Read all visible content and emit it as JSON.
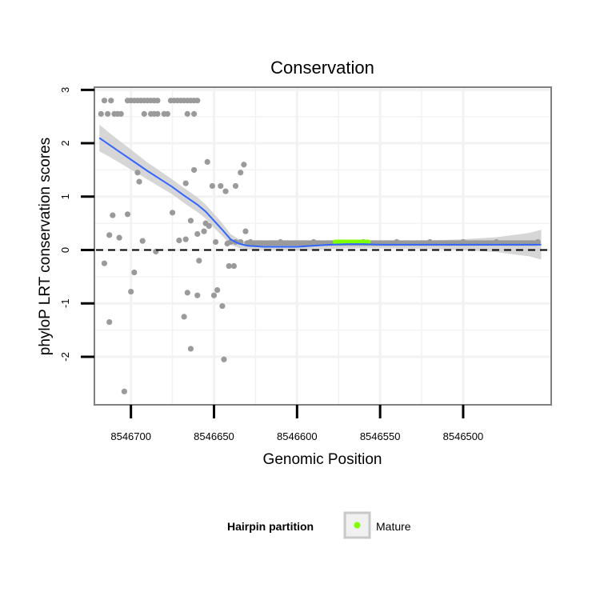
{
  "chart_data": {
    "type": "scatter",
    "title": "Conservation",
    "xlabel": "Genomic Position",
    "ylabel": "phyloP LRT conservation scores",
    "x_reversed": true,
    "xlim": [
      8546722,
      8546447
    ],
    "ylim": [
      -2.9,
      3.05
    ],
    "x_ticks": [
      8546700,
      8546650,
      8546600,
      8546550,
      8546500
    ],
    "x_tick_labels": [
      "8546700",
      "8546650",
      "8546600",
      "8546550",
      "8546500"
    ],
    "y_ticks": [
      -2,
      -1,
      0,
      1,
      2,
      3
    ],
    "y_tick_labels": [
      "-2",
      "-1",
      "0",
      "1",
      "2",
      "3"
    ],
    "reference_line_y": 0,
    "points": [
      [
        8546718,
        2.55
      ],
      [
        8546716,
        2.8
      ],
      [
        8546714,
        2.55
      ],
      [
        8546712,
        2.8
      ],
      [
        8546710,
        2.55
      ],
      [
        8546708,
        2.55
      ],
      [
        8546706,
        2.55
      ],
      [
        8546716,
        -0.25
      ],
      [
        8546713,
        0.28
      ],
      [
        8546711,
        0.65
      ],
      [
        8546713,
        -1.35
      ],
      [
        8546707,
        0.23
      ],
      [
        8546704,
        -2.65
      ],
      [
        8546702,
        2.8
      ],
      [
        8546700,
        2.8
      ],
      [
        8546698,
        2.8
      ],
      [
        8546696,
        2.8
      ],
      [
        8546694,
        2.8
      ],
      [
        8546692,
        2.8
      ],
      [
        8546690,
        2.8
      ],
      [
        8546688,
        2.8
      ],
      [
        8546686,
        2.8
      ],
      [
        8546684,
        2.8
      ],
      [
        8546692,
        2.55
      ],
      [
        8546688,
        2.55
      ],
      [
        8546686,
        2.55
      ],
      [
        8546684,
        2.55
      ],
      [
        8546680,
        2.55
      ],
      [
        8546678,
        2.55
      ],
      [
        8546676,
        2.8
      ],
      [
        8546674,
        2.8
      ],
      [
        8546672,
        2.8
      ],
      [
        8546670,
        2.8
      ],
      [
        8546668,
        2.8
      ],
      [
        8546666,
        2.8
      ],
      [
        8546664,
        2.8
      ],
      [
        8546662,
        2.8
      ],
      [
        8546660,
        2.8
      ],
      [
        8546666,
        2.55
      ],
      [
        8546662,
        2.55
      ],
      [
        8546702,
        0.67
      ],
      [
        8546700,
        -0.78
      ],
      [
        8546698,
        -0.42
      ],
      [
        8546696,
        1.45
      ],
      [
        8546695,
        1.28
      ],
      [
        8546693,
        0.17
      ],
      [
        8546685,
        -0.03
      ],
      [
        8546675,
        0.7
      ],
      [
        8546671,
        0.18
      ],
      [
        8546667,
        1.25
      ],
      [
        8546667,
        0.2
      ],
      [
        8546664,
        0.55
      ],
      [
        8546662,
        1.5
      ],
      [
        8546660,
        0.3
      ],
      [
        8546659,
        -0.2
      ],
      [
        8546656,
        0.35
      ],
      [
        8546655,
        0.5
      ],
      [
        8546653,
        0.45
      ],
      [
        8546654,
        1.65
      ],
      [
        8546651,
        1.2
      ],
      [
        8546649,
        0.15
      ],
      [
        8546646,
        1.2
      ],
      [
        8546643,
        1.1
      ],
      [
        8546642,
        0.12
      ],
      [
        8546640,
        0.15
      ],
      [
        8546637,
        0.15
      ],
      [
        8546637,
        1.2
      ],
      [
        8546634,
        1.45
      ],
      [
        8546632,
        1.6
      ],
      [
        8546631,
        0.35
      ],
      [
        8546641,
        -0.3
      ],
      [
        8546638,
        -0.3
      ],
      [
        8546634,
        0.15
      ],
      [
        8546668,
        -1.25
      ],
      [
        8546666,
        -0.8
      ],
      [
        8546664,
        -1.85
      ],
      [
        8546660,
        -0.85
      ],
      [
        8546650,
        -0.85
      ],
      [
        8546648,
        -0.75
      ],
      [
        8546645,
        -1.05
      ],
      [
        8546644,
        -2.05
      ],
      [
        8546628,
        0.15
      ],
      [
        8546610,
        0.15
      ],
      [
        8546590,
        0.15
      ],
      [
        8546560,
        0.15
      ],
      [
        8546540,
        0.15
      ],
      [
        8546520,
        0.15
      ],
      [
        8546500,
        0.15
      ],
      [
        8546480,
        0.15
      ],
      [
        8546455,
        0.15
      ]
    ],
    "dense_band": {
      "x_from": 8546630,
      "x_to": 8546456,
      "y": 0.13
    },
    "mature_segment": {
      "x_from": 8546577,
      "x_to": 8546557,
      "y": 0.15
    },
    "smooth_line": [
      [
        8546719,
        2.1
      ],
      [
        8546712,
        1.95
      ],
      [
        8546705,
        1.8
      ],
      [
        8546697,
        1.63
      ],
      [
        8546690,
        1.48
      ],
      [
        8546682,
        1.32
      ],
      [
        8546675,
        1.18
      ],
      [
        8546668,
        1.02
      ],
      [
        8546660,
        0.85
      ],
      [
        8546655,
        0.72
      ],
      [
        8546650,
        0.55
      ],
      [
        8546645,
        0.38
      ],
      [
        8546640,
        0.2
      ],
      [
        8546635,
        0.12
      ],
      [
        8546630,
        0.08
      ],
      [
        8546620,
        0.06
      ],
      [
        8546610,
        0.06
      ],
      [
        8546600,
        0.06
      ],
      [
        8546590,
        0.08
      ],
      [
        8546580,
        0.1
      ],
      [
        8546570,
        0.11
      ],
      [
        8546560,
        0.11
      ],
      [
        8546550,
        0.1
      ],
      [
        8546540,
        0.1
      ],
      [
        8546520,
        0.1
      ],
      [
        8546500,
        0.1
      ],
      [
        8546480,
        0.1
      ],
      [
        8546460,
        0.1
      ],
      [
        8546453,
        0.1
      ]
    ],
    "ribbon_halfwidth": [
      0.25,
      0.22,
      0.2,
      0.18,
      0.16,
      0.15,
      0.14,
      0.14,
      0.14,
      0.13,
      0.13,
      0.12,
      0.1,
      0.08,
      0.07,
      0.06,
      0.06,
      0.07,
      0.08,
      0.08,
      0.08,
      0.08,
      0.07,
      0.07,
      0.08,
      0.1,
      0.14,
      0.22,
      0.28
    ],
    "colors": {
      "point": "#9a9a9a",
      "smooth": "#3366ff",
      "ribbon": "#cfcfcf",
      "mature": "#7fff00",
      "panel_border": "#7f7f7f",
      "grid": "#f2f2f2"
    },
    "legend": {
      "title": "Hairpin partition",
      "items": [
        {
          "label": "Mature",
          "color": "#7fff00"
        }
      ],
      "position": "bottom"
    }
  }
}
